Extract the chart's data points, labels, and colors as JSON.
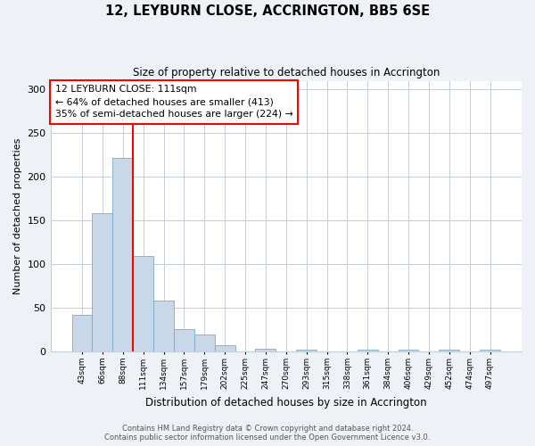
{
  "title": "12, LEYBURN CLOSE, ACCRINGTON, BB5 6SE",
  "subtitle": "Size of property relative to detached houses in Accrington",
  "xlabel": "Distribution of detached houses by size in Accrington",
  "ylabel": "Number of detached properties",
  "bin_labels": [
    "43sqm",
    "66sqm",
    "88sqm",
    "111sqm",
    "134sqm",
    "157sqm",
    "179sqm",
    "202sqm",
    "225sqm",
    "247sqm",
    "270sqm",
    "293sqm",
    "315sqm",
    "338sqm",
    "361sqm",
    "384sqm",
    "406sqm",
    "429sqm",
    "452sqm",
    "474sqm",
    "497sqm"
  ],
  "bar_heights": [
    42,
    158,
    222,
    109,
    58,
    26,
    20,
    7,
    0,
    3,
    0,
    2,
    0,
    0,
    2,
    0,
    2,
    0,
    2,
    0,
    2
  ],
  "bar_color": "#c8d8e8",
  "bar_edge_color": "#7aaac8",
  "vline_index": 3,
  "vline_color": "red",
  "annotation_title": "12 LEYBURN CLOSE: 111sqm",
  "annotation_line2": "← 64% of detached houses are smaller (413)",
  "annotation_line3": "35% of semi-detached houses are larger (224) →",
  "ylim": [
    0,
    310
  ],
  "yticks": [
    0,
    50,
    100,
    150,
    200,
    250,
    300
  ],
  "footer1": "Contains HM Land Registry data © Crown copyright and database right 2024.",
  "footer2": "Contains public sector information licensed under the Open Government Licence v3.0.",
  "background_color": "#eef2f7",
  "plot_background_color": "#ffffff",
  "grid_color": "#c5cdd8"
}
